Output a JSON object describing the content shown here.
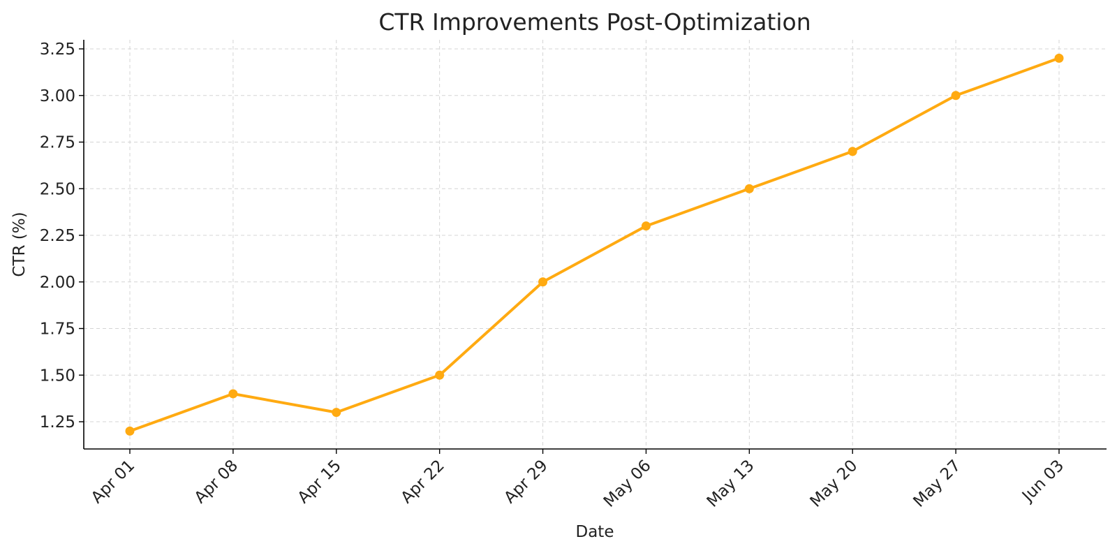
{
  "chart_data": {
    "type": "line",
    "title": "CTR Improvements Post-Optimization",
    "xlabel": "Date",
    "ylabel": "CTR (%)",
    "categories": [
      "Apr 01",
      "Apr 08",
      "Apr 15",
      "Apr 22",
      "Apr 29",
      "May 06",
      "May 13",
      "May 20",
      "May 27",
      "Jun 03"
    ],
    "series": [
      {
        "values": [
          1.2,
          1.4,
          1.3,
          1.5,
          2.0,
          2.3,
          2.5,
          2.7,
          3.0,
          3.2
        ],
        "color": "#FFAA11"
      }
    ],
    "yticks": [
      "1.25",
      "1.50",
      "1.75",
      "2.00",
      "2.25",
      "2.50",
      "2.75",
      "3.00",
      "3.25"
    ],
    "ylim": [
      1.1,
      3.3
    ],
    "grid": true,
    "legend": "none"
  }
}
